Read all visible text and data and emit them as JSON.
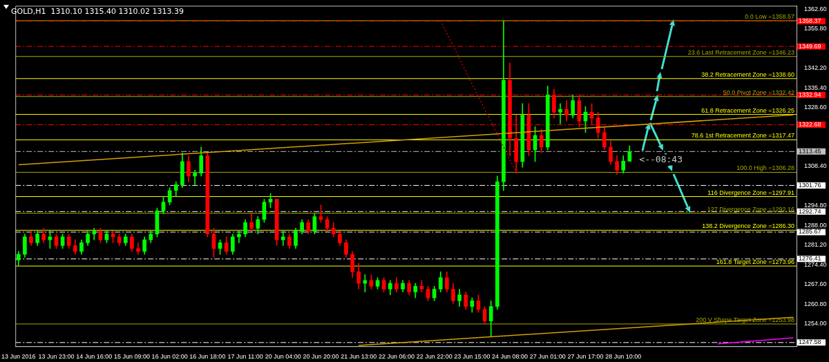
{
  "chart_data": {
    "type": "candlestick",
    "title": "GOLD,H1  1310.10 1315.40 1310.02 1313.39",
    "categories": [
      "13 Jun 2016",
      null,
      null,
      null,
      null,
      null,
      "13 Jun 23:00",
      null,
      null,
      null,
      null,
      null,
      "14 Jun 16:00",
      null,
      null,
      null,
      null,
      null,
      "15 Jun 09:00",
      null,
      null,
      null,
      null,
      null,
      "16 Jun 02:00",
      null,
      null,
      null,
      null,
      null,
      "16 Jun 18:00",
      null,
      null,
      null,
      null,
      null,
      "17 Jun 11:00",
      null,
      null,
      null,
      null,
      null,
      "20 Jun 04:00",
      null,
      null,
      null,
      null,
      null,
      "20 Jun 20:00",
      null,
      null,
      null,
      null,
      null,
      "21 Jun 13:00",
      null,
      null,
      null,
      null,
      null,
      "22 Jun 06:00",
      null,
      null,
      null,
      null,
      null,
      "22 Jun 22:00",
      null,
      null,
      null,
      null,
      null,
      "23 Jun 15:00",
      null,
      null,
      null,
      null,
      null,
      "24 Jun 08:00",
      null,
      null,
      null,
      null,
      null,
      "27 Jun 01:00",
      null,
      null,
      null,
      null,
      null,
      "27 Jun 17:00",
      null,
      null,
      null,
      null,
      null,
      "28 Jun 10:00",
      null,
      null,
      null,
      null,
      null,
      null,
      null,
      null,
      null,
      null,
      null,
      null,
      null,
      null,
      null,
      null,
      null,
      null,
      null,
      null,
      null,
      null,
      null,
      null,
      null,
      null,
      null
    ],
    "ohlc": [
      [
        1276,
        1279,
        1274,
        1278
      ],
      [
        1278,
        1285,
        1277,
        1284
      ],
      [
        1284,
        1286,
        1281,
        1282
      ],
      [
        1282,
        1286,
        1281,
        1285
      ],
      [
        1285,
        1287,
        1282,
        1283
      ],
      [
        1283,
        1286,
        1280,
        1284
      ],
      [
        1284,
        1285,
        1280,
        1281
      ],
      [
        1281,
        1285,
        1280,
        1284
      ],
      [
        1284,
        1285,
        1280,
        1281
      ],
      [
        1281,
        1283,
        1278,
        1279
      ],
      [
        1279,
        1283,
        1278,
        1282
      ],
      [
        1282,
        1286,
        1281,
        1285
      ],
      [
        1285,
        1287,
        1283,
        1286
      ],
      [
        1286,
        1287,
        1282,
        1283
      ],
      [
        1283,
        1286,
        1282,
        1285
      ],
      [
        1285,
        1286,
        1282,
        1284
      ],
      [
        1284,
        1285,
        1281,
        1282
      ],
      [
        1282,
        1285,
        1281,
        1284
      ],
      [
        1284,
        1285,
        1279,
        1280
      ],
      [
        1280,
        1282,
        1278,
        1279
      ],
      [
        1279,
        1284,
        1278,
        1283
      ],
      [
        1283,
        1286,
        1282,
        1285
      ],
      [
        1285,
        1294,
        1284,
        1293
      ],
      [
        1293,
        1298,
        1292,
        1296
      ],
      [
        1296,
        1301,
        1295,
        1300
      ],
      [
        1300,
        1303,
        1298,
        1302
      ],
      [
        1302,
        1313,
        1301,
        1310
      ],
      [
        1310,
        1312,
        1303,
        1305
      ],
      [
        1305,
        1307,
        1302,
        1306
      ],
      [
        1306,
        1315,
        1305,
        1312
      ],
      [
        1312,
        1313,
        1284,
        1285
      ],
      [
        1285,
        1287,
        1277,
        1280
      ],
      [
        1280,
        1283,
        1278,
        1282
      ],
      [
        1282,
        1284,
        1278,
        1279
      ],
      [
        1279,
        1285,
        1278,
        1284
      ],
      [
        1284,
        1286,
        1282,
        1285
      ],
      [
        1285,
        1290,
        1284,
        1289
      ],
      [
        1289,
        1292,
        1286,
        1287
      ],
      [
        1287,
        1291,
        1285,
        1290
      ],
      [
        1290,
        1297,
        1289,
        1296
      ],
      [
        1296,
        1299,
        1294,
        1297
      ],
      [
        1297,
        1297,
        1281,
        1283
      ],
      [
        1283,
        1286,
        1281,
        1284
      ],
      [
        1284,
        1285,
        1280,
        1281
      ],
      [
        1281,
        1287,
        1280,
        1286
      ],
      [
        1286,
        1290,
        1285,
        1289
      ],
      [
        1289,
        1290,
        1285,
        1286
      ],
      [
        1286,
        1292,
        1285,
        1291
      ],
      [
        1291,
        1295,
        1289,
        1290
      ],
      [
        1290,
        1291,
        1286,
        1287
      ],
      [
        1287,
        1289,
        1284,
        1285
      ],
      [
        1285,
        1286,
        1281,
        1282
      ],
      [
        1282,
        1283,
        1277,
        1278
      ],
      [
        1278,
        1279,
        1270,
        1272
      ],
      [
        1272,
        1275,
        1266,
        1268
      ],
      [
        1268,
        1271,
        1265,
        1269
      ],
      [
        1269,
        1271,
        1266,
        1267
      ],
      [
        1267,
        1270,
        1266,
        1269
      ],
      [
        1269,
        1270,
        1265,
        1266
      ],
      [
        1266,
        1269,
        1264,
        1268
      ],
      [
        1268,
        1270,
        1265,
        1266
      ],
      [
        1266,
        1269,
        1265,
        1268
      ],
      [
        1268,
        1269,
        1264,
        1265
      ],
      [
        1265,
        1268,
        1263,
        1267
      ],
      [
        1267,
        1269,
        1265,
        1266
      ],
      [
        1266,
        1267,
        1262,
        1263
      ],
      [
        1263,
        1267,
        1262,
        1266
      ],
      [
        1266,
        1272,
        1265,
        1270
      ],
      [
        1270,
        1272,
        1265,
        1266
      ],
      [
        1266,
        1268,
        1261,
        1262
      ],
      [
        1262,
        1266,
        1260,
        1264
      ],
      [
        1264,
        1265,
        1259,
        1260
      ],
      [
        1260,
        1263,
        1258,
        1262
      ],
      [
        1262,
        1264,
        1258,
        1259
      ],
      [
        1259,
        1260,
        1254,
        1255
      ],
      [
        1255,
        1262,
        1249.6,
        1260
      ],
      [
        1260,
        1305,
        1259,
        1303
      ],
      [
        1303,
        1358.5,
        1300,
        1338
      ],
      [
        1338,
        1344,
        1312,
        1318
      ],
      [
        1318,
        1326,
        1306,
        1310
      ],
      [
        1310,
        1330,
        1308,
        1326
      ],
      [
        1326,
        1330,
        1312,
        1314
      ],
      [
        1314,
        1322,
        1310,
        1319
      ],
      [
        1319,
        1321,
        1313,
        1315
      ],
      [
        1315,
        1336,
        1314,
        1333
      ],
      [
        1333,
        1335,
        1325,
        1327
      ],
      [
        1327,
        1330,
        1323,
        1328
      ],
      [
        1328,
        1331,
        1324,
        1326
      ],
      [
        1326,
        1333,
        1325,
        1331
      ],
      [
        1331,
        1333,
        1322,
        1324
      ],
      [
        1324,
        1329,
        1320,
        1327
      ],
      [
        1327,
        1330,
        1323,
        1325
      ],
      [
        1325,
        1327,
        1318,
        1320
      ],
      [
        1320,
        1322,
        1314,
        1315
      ],
      [
        1315,
        1317,
        1309,
        1310
      ],
      [
        1310,
        1312,
        1305.5,
        1307
      ],
      [
        1307,
        1312,
        1306,
        1310.1
      ],
      [
        1310.1,
        1315.4,
        1310.02,
        1313.39
      ],
      null,
      null,
      null,
      null,
      null,
      null,
      null,
      null,
      null,
      null,
      null,
      null,
      null,
      null,
      null,
      null,
      null,
      null,
      null,
      null,
      null,
      null,
      null,
      null,
      null,
      null
    ],
    "colors": [
      "#00ff00",
      "#00ff00",
      "#ff0000",
      "#00ff00",
      "#ff0000",
      "#00ff00",
      "#ff0000",
      "#00ff00",
      "#ff0000",
      "#ff0000",
      "#00ff00",
      "#00ff00",
      "#00ff00",
      "#ff0000",
      "#00ff00",
      "#ff0000",
      "#ff0000",
      "#00ff00",
      "#ff0000",
      "#ff0000",
      "#00ff00",
      "#00ff00",
      "#00ff00",
      "#00ff00",
      "#00ff00",
      "#00ff00",
      "#00ff00",
      "#ff0000",
      "#00ff00",
      "#00ff00",
      "#ff0000",
      "#ff0000",
      "#00ff00",
      "#ff0000",
      "#00ff00",
      "#00ff00",
      "#00ff00",
      "#ff0000",
      "#00ff00",
      "#00ff00",
      "#00ff00",
      "#ff0000",
      "#00ff00",
      "#ff0000",
      "#00ff00",
      "#00ff00",
      "#ff0000",
      "#00ff00",
      "#ff0000",
      "#ff0000",
      "#ff0000",
      "#ff0000",
      "#ff0000",
      "#ff0000",
      "#ff0000",
      "#00ff00",
      "#ff0000",
      "#00ff00",
      "#ff0000",
      "#00ff00",
      "#ff0000",
      "#00ff00",
      "#ff0000",
      "#00ff00",
      "#ff0000",
      "#ff0000",
      "#00ff00",
      "#00ff00",
      "#ff0000",
      "#ff0000",
      "#00ff00",
      "#ff0000",
      "#00ff00",
      "#ff0000",
      "#ff0000",
      "#00ff00",
      "#00ff00",
      "#00ff00",
      "#ff0000",
      "#ff0000",
      "#00ff00",
      "#ff0000",
      "#00ff00",
      "#ff0000",
      "#00ff00",
      "#ff0000",
      "#00ff00",
      "#ff0000",
      "#00ff00",
      "#ff0000",
      "#00ff00",
      "#ff0000",
      "#ff0000",
      "#ff0000",
      "#ff0000",
      "#ff0000",
      "#00ff00",
      "#00ff00",
      null,
      null,
      null,
      null,
      null,
      null,
      null,
      null,
      null,
      null,
      null,
      null,
      null,
      null,
      null,
      null,
      null,
      null,
      null,
      null,
      null,
      null,
      null,
      null,
      null,
      null
    ],
    "series": [
      {
        "type": "line",
        "color": "#d4a000",
        "line_style": "solid",
        "values": [
          1308.9,
          null,
          null,
          null,
          null,
          null,
          null,
          null,
          null,
          null,
          null,
          null,
          null,
          null,
          null,
          null,
          null,
          null,
          null,
          null,
          null,
          null,
          null,
          null,
          null,
          null,
          null,
          null,
          null,
          null,
          null,
          null,
          null,
          null,
          null,
          null,
          null,
          null,
          null,
          null,
          null,
          null,
          null,
          null,
          null,
          null,
          null,
          null,
          null,
          null,
          null,
          null,
          null,
          null,
          null,
          null,
          null,
          null,
          null,
          null,
          null,
          null,
          null,
          null,
          null,
          null,
          null,
          null,
          null,
          null,
          null,
          null,
          null,
          null,
          null,
          null,
          null,
          null,
          null,
          null,
          null,
          null,
          null,
          null,
          null,
          null,
          null,
          null,
          null,
          null,
          null,
          null,
          null,
          null,
          null,
          null,
          null,
          null,
          null,
          null,
          null,
          null,
          null,
          null,
          null,
          null,
          null,
          null,
          null,
          null,
          null,
          null,
          null,
          null,
          null,
          null,
          null,
          null,
          null,
          null,
          null,
          null,
          null,
          1326.1
        ]
      },
      {
        "type": "line",
        "color": "#d4a000",
        "line_style": "solid",
        "values": [
          null,
          null,
          null,
          null,
          null,
          null,
          null,
          null,
          null,
          null,
          null,
          null,
          null,
          null,
          null,
          null,
          null,
          null,
          null,
          null,
          null,
          null,
          null,
          null,
          null,
          null,
          null,
          null,
          null,
          null,
          null,
          null,
          null,
          null,
          null,
          null,
          null,
          null,
          null,
          null,
          null,
          null,
          null,
          null,
          null,
          null,
          null,
          null,
          null,
          null,
          null,
          null,
          null,
          null,
          1246.6,
          null,
          null,
          null,
          null,
          null,
          null,
          null,
          null,
          null,
          null,
          null,
          null,
          null,
          null,
          null,
          null,
          null,
          null,
          null,
          null,
          null,
          null,
          null,
          null,
          null,
          null,
          null,
          null,
          null,
          null,
          null,
          null,
          null,
          null,
          null,
          null,
          null,
          null,
          null,
          null,
          null,
          null,
          null,
          null,
          null,
          null,
          null,
          null,
          null,
          null,
          null,
          null,
          null,
          null,
          null,
          null,
          null,
          null,
          null,
          null,
          null,
          null,
          null,
          null,
          null,
          null,
          null,
          null,
          1256.3
        ]
      },
      {
        "type": "line",
        "color": "#ff00ff",
        "line_style": "solid",
        "values": [
          null,
          null,
          null,
          null,
          null,
          null,
          null,
          null,
          null,
          null,
          null,
          null,
          null,
          null,
          null,
          null,
          null,
          null,
          null,
          null,
          null,
          null,
          null,
          null,
          null,
          null,
          null,
          null,
          null,
          null,
          null,
          null,
          null,
          null,
          null,
          null,
          null,
          null,
          null,
          null,
          null,
          null,
          null,
          null,
          null,
          null,
          null,
          null,
          null,
          null,
          null,
          null,
          null,
          null,
          null,
          null,
          null,
          null,
          null,
          null,
          null,
          null,
          null,
          null,
          null,
          null,
          null,
          null,
          null,
          null,
          null,
          null,
          null,
          null,
          null,
          null,
          null,
          null,
          null,
          null,
          null,
          null,
          null,
          null,
          null,
          null,
          null,
          null,
          null,
          null,
          null,
          null,
          null,
          null,
          null,
          null,
          null,
          null,
          null,
          null,
          null,
          null,
          null,
          null,
          null,
          null,
          null,
          null,
          null,
          null,
          null,
          1247.1,
          null,
          null,
          null,
          null,
          null,
          null,
          null,
          null,
          null,
          null,
          null,
          1249.2
        ]
      },
      {
        "type": "line",
        "color": "#c00000",
        "line_style": "dotted",
        "values": [
          null,
          null,
          null,
          null,
          null,
          null,
          null,
          null,
          null,
          null,
          null,
          null,
          null,
          null,
          null,
          null,
          null,
          null,
          null,
          null,
          null,
          null,
          null,
          null,
          null,
          null,
          null,
          null,
          null,
          null,
          null,
          null,
          null,
          null,
          null,
          null,
          null,
          null,
          null,
          null,
          null,
          null,
          null,
          null,
          null,
          null,
          null,
          null,
          null,
          null,
          null,
          null,
          null,
          null,
          null,
          null,
          null,
          null,
          null,
          null,
          null,
          null,
          null,
          null,
          null,
          null,
          null,
          1358.57,
          null,
          null,
          null,
          null,
          null,
          null,
          null,
          null,
          null,
          null,
          null,
          1306.28,
          null,
          null,
          null,
          null,
          null,
          null,
          null,
          null,
          null,
          null,
          null,
          null,
          null,
          null,
          null,
          null,
          null,
          null,
          null,
          null,
          null,
          null,
          null,
          null,
          null,
          null,
          null,
          null,
          null,
          null,
          null,
          null,
          null,
          null,
          null,
          null,
          null,
          null,
          null,
          null,
          null,
          null,
          null,
          null
        ]
      }
    ],
    "ref_lines": [
      {
        "axis": "y",
        "value": 1358.57,
        "label": "0.0 Low =1358.57",
        "color": "#a8a800",
        "line_style": "solid"
      },
      {
        "axis": "y",
        "value": 1346.23,
        "label": "23.6 Last Retracement Zone =1346.23",
        "color": "#a8a800",
        "line_style": "solid"
      },
      {
        "axis": "y",
        "value": 1338.6,
        "label": "38.2 Retracement Zone =1338.60",
        "color": "#ffff00",
        "line_style": "solid"
      },
      {
        "axis": "y",
        "value": 1332.42,
        "label": "50.0 Pivot Zone =1332.42",
        "color": "#a8a800",
        "line_style": "solid"
      },
      {
        "axis": "y",
        "value": 1326.25,
        "label": "61.8 Retracement Zone =1326.25",
        "color": "#ffff00",
        "line_style": "solid"
      },
      {
        "axis": "y",
        "value": 1317.47,
        "label": "78.6 1st Retracement Zone =1317.47",
        "color": "#ffff00",
        "line_style": "solid"
      },
      {
        "axis": "y",
        "value": 1306.28,
        "label": "100.0 High =1306.28",
        "color": "#a8a800",
        "line_style": "solid"
      },
      {
        "axis": "y",
        "value": 1297.91,
        "label": "116 Divergence Zone =1297.91",
        "color": "#ffff00",
        "line_style": "solid"
      },
      {
        "axis": "y",
        "value": 1292.16,
        "label": "127 Divergence Zone =1292.16",
        "color": "#a8a800",
        "line_style": "solid"
      },
      {
        "axis": "y",
        "value": 1286.3,
        "label": "138.2 Divergence Zone =1286.30",
        "color": "#ffff00",
        "line_style": "solid"
      },
      {
        "axis": "y",
        "value": 1273.96,
        "label": "161.8 Target Zone =1273.96",
        "color": "#ffff00",
        "line_style": "solid"
      },
      {
        "axis": "y",
        "value": 1253.98,
        "label": "200 V Shape Target Zone =1253.98",
        "color": "#a8a800",
        "line_style": "solid"
      },
      {
        "axis": "y",
        "value": 1358.37,
        "label": "1358.37",
        "color": "#ff0000",
        "line_style": "dashed"
      },
      {
        "axis": "y",
        "value": 1349.69,
        "label": "1349.69",
        "color": "#ff0000",
        "line_style": "dashed"
      },
      {
        "axis": "y",
        "value": 1332.94,
        "label": "1332.94",
        "color": "#ff0000",
        "line_style": "dashed"
      },
      {
        "axis": "y",
        "value": 1322.68,
        "label": "1322.68",
        "color": "#ff0000",
        "line_style": "dashed"
      },
      {
        "axis": "y",
        "value": 1313.45,
        "label": "1313.45",
        "color": "#c0c0c0",
        "line_style": "dashed"
      },
      {
        "axis": "y",
        "value": 1301.76,
        "label": "1301.76",
        "color": "#ffffff",
        "line_style": "dashed"
      },
      {
        "axis": "y",
        "value": 1292.74,
        "label": "1292.74",
        "color": "#ffffff",
        "line_style": "dashed"
      },
      {
        "axis": "y",
        "value": 1285.67,
        "label": "1285.67",
        "color": "#ffffff",
        "line_style": "dashed"
      },
      {
        "axis": "y",
        "value": 1276.41,
        "label": "1276.41",
        "color": "#ffffff",
        "line_style": "dashed"
      },
      {
        "axis": "y",
        "value": 1247.58,
        "label": "1247.58",
        "color": "#ffffff",
        "line_style": "dashed"
      }
    ],
    "annotations": [
      "<--08:43"
    ],
    "ylim": [
      1246.3,
      1363.7
    ],
    "yticks": [
      {
        "value": 1362.6,
        "label": "1362.60"
      },
      {
        "value": 1355.8,
        "label": "1355.80"
      },
      {
        "value": 1342.2,
        "label": "1342.20"
      },
      {
        "value": 1335.4,
        "label": "1335.40"
      },
      {
        "value": 1328.6,
        "label": "1328.60"
      },
      {
        "value": 1308.4,
        "label": "1308.40"
      },
      {
        "value": 1294.8,
        "label": "1294.80"
      },
      {
        "value": 1288,
        "label": "1288.00"
      },
      {
        "value": 1281.2,
        "label": "1281.20"
      },
      {
        "value": 1274.4,
        "label": "1274.40"
      },
      {
        "value": 1267.6,
        "label": "1267.60"
      },
      {
        "value": 1260.8,
        "label": "1260.80"
      },
      {
        "value": 1254,
        "label": "1254.00"
      }
    ],
    "grid": false,
    "legend": false
  }
}
